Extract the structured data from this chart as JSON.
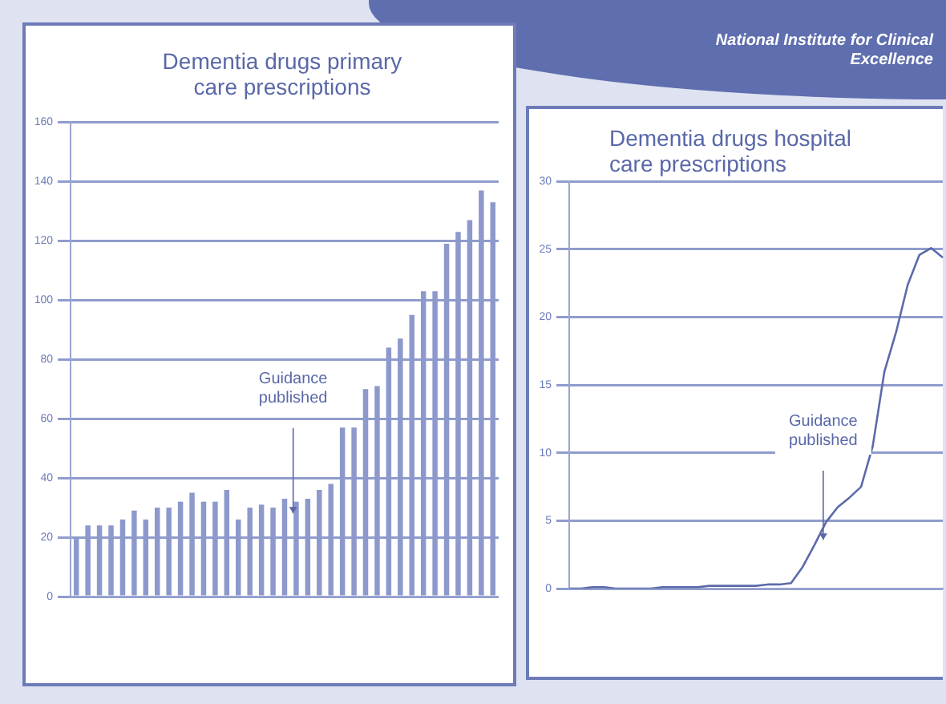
{
  "chart_data": [
    {
      "type": "bar",
      "title": "Dementia drugs primary care prescriptions",
      "color": "#8d99cc",
      "grid": "y",
      "legend": false,
      "tick_labels": "y",
      "categories": [
        null,
        null,
        null,
        null,
        null,
        null,
        null,
        null,
        null,
        null,
        null,
        null,
        null,
        null,
        null,
        null,
        null,
        null,
        null,
        null,
        null,
        null,
        null,
        null,
        null,
        null,
        null,
        null,
        null,
        null,
        null,
        null,
        null,
        null,
        null,
        null,
        null
      ],
      "values": [
        20,
        24,
        24,
        24,
        26,
        29,
        26,
        30,
        30,
        32,
        35,
        32,
        32,
        36,
        26,
        30,
        31,
        30,
        33,
        32,
        33,
        36,
        38,
        57,
        57,
        70,
        71,
        84,
        87,
        95,
        103,
        103,
        119,
        123,
        127,
        137,
        133
      ],
      "ylim": [
        0,
        160
      ],
      "yticks": [
        0,
        20,
        40,
        60,
        80,
        100,
        120,
        140,
        160
      ],
      "annotations": [
        "Guidance published"
      ]
    },
    {
      "type": "line",
      "title": "Dementia drugs hospital care prescriptions",
      "color": "#5c6aaa",
      "grid": "y",
      "legend": false,
      "tick_labels": "y",
      "marker": "none",
      "categories": [
        null,
        null,
        null,
        null,
        null,
        null,
        null,
        null,
        null,
        null,
        null,
        null,
        null,
        null,
        null,
        null,
        null,
        null,
        null,
        null,
        null,
        null,
        null,
        null,
        null,
        null,
        null,
        null,
        null,
        null,
        null,
        null,
        null
      ],
      "values": [
        0,
        0,
        0.1,
        0.1,
        0,
        0,
        0,
        0,
        0.1,
        0.1,
        0.1,
        0.1,
        0.2,
        0.2,
        0.2,
        0.2,
        0.2,
        0.3,
        0.3,
        0.4,
        1.6,
        3.2,
        4.9,
        6.0,
        6.7,
        7.5,
        10.5,
        16,
        18.9,
        22.4,
        24.6,
        25.1,
        24.4
      ],
      "ylim": [
        0,
        30
      ],
      "yticks": [
        0,
        5,
        10,
        15,
        20,
        25,
        30
      ],
      "annotations": [
        "Guidance published",
        "National Institute for Clinical Excellence"
      ]
    }
  ]
}
